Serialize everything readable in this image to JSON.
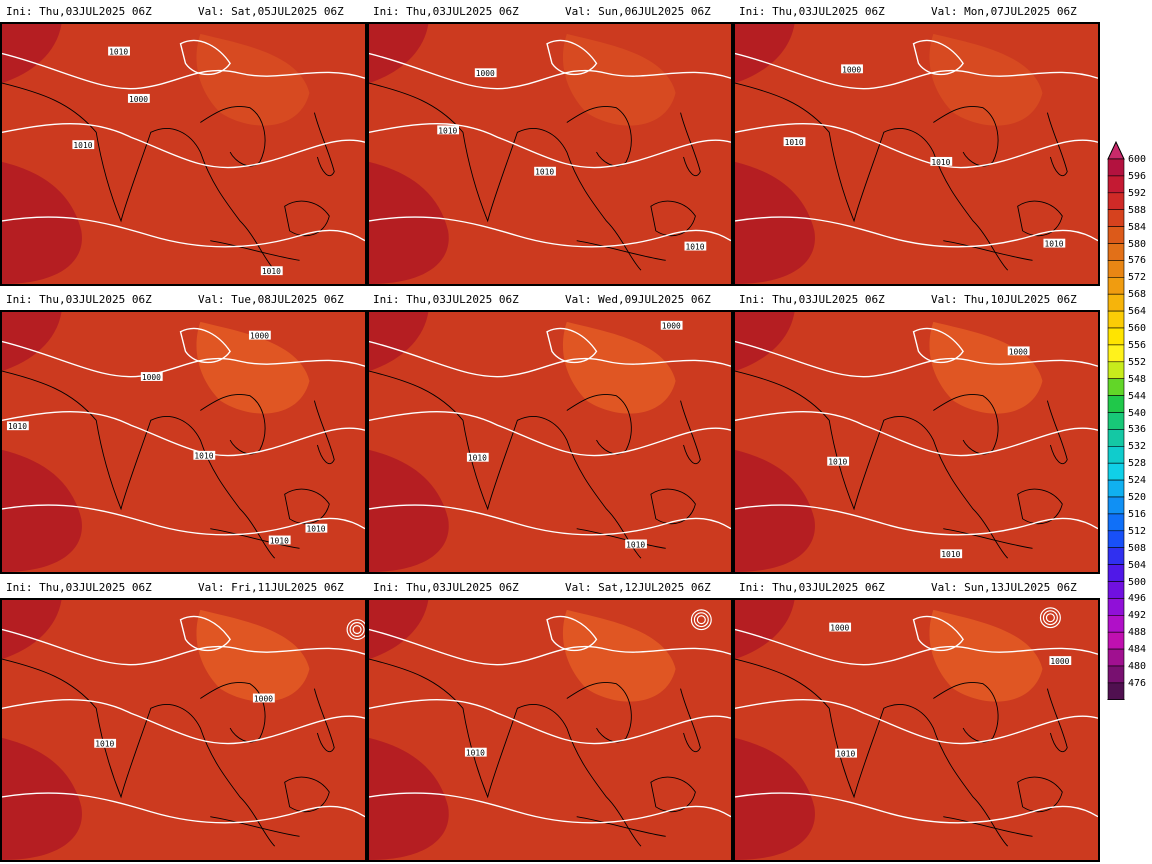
{
  "panels": [
    {
      "ini": "Ini: Thu,03JUL2025 06Z",
      "val": "Val: Sat,05JUL2025 06Z",
      "labels": [
        "1010",
        "1000",
        "1010",
        "1010"
      ]
    },
    {
      "ini": "Ini: Thu,03JUL2025 06Z",
      "val": "Val: Sun,06JUL2025 06Z",
      "labels": [
        "1000",
        "1010",
        "1010",
        "1010"
      ]
    },
    {
      "ini": "Ini: Thu,03JUL2025 06Z",
      "val": "Val: Mon,07JUL2025 06Z",
      "labels": [
        "1000",
        "1010",
        "1010",
        "1010"
      ]
    },
    {
      "ini": "Ini: Thu,03JUL2025 06Z",
      "val": "Val: Tue,08JUL2025 06Z",
      "labels": [
        "1000",
        "1000",
        "1010",
        "1010",
        "1010",
        "1010"
      ]
    },
    {
      "ini": "Ini: Thu,03JUL2025 06Z",
      "val": "Val: Wed,09JUL2025 06Z",
      "labels": [
        "1000",
        "1010",
        "1010"
      ]
    },
    {
      "ini": "Ini: Thu,03JUL2025 06Z",
      "val": "Val: Thu,10JUL2025 06Z",
      "labels": [
        "1000",
        "1010",
        "1010"
      ]
    },
    {
      "ini": "Ini: Thu,03JUL2025 06Z",
      "val": "Val: Fri,11JUL2025 06Z",
      "labels": [
        "1000",
        "1010"
      ]
    },
    {
      "ini": "Ini: Thu,03JUL2025 06Z",
      "val": "Val: Sat,12JUL2025 06Z",
      "labels": [
        "1010"
      ]
    },
    {
      "ini": "Ini: Thu,03JUL2025 06Z",
      "val": "Val: Sun,13JUL2025 06Z",
      "labels": [
        "1000",
        "1000",
        "1010"
      ]
    }
  ],
  "colorbar": {
    "levels": [
      "600",
      "596",
      "592",
      "588",
      "584",
      "580",
      "576",
      "572",
      "568",
      "564",
      "560",
      "556",
      "552",
      "548",
      "544",
      "540",
      "536",
      "532",
      "528",
      "524",
      "520",
      "516",
      "512",
      "508",
      "504",
      "500",
      "496",
      "492",
      "488",
      "484",
      "480",
      "476"
    ],
    "colors": [
      "#b3123f",
      "#c41a33",
      "#cf2a27",
      "#d6421e",
      "#dc5a1a",
      "#e27018",
      "#e98614",
      "#f09c10",
      "#f6b40b",
      "#fbcc06",
      "#ffe400",
      "#fff21c",
      "#c8ec1c",
      "#62d628",
      "#20c84a",
      "#18c878",
      "#14c8a4",
      "#10cccc",
      "#10d0e8",
      "#10b0f0",
      "#1090f4",
      "#1070f8",
      "#1850f8",
      "#3030f0",
      "#5018e8",
      "#7010e0",
      "#9010d8",
      "#b010c8",
      "#c010b0",
      "#a01090",
      "#781070",
      "#501050"
    ],
    "top_color": "#c82a6a",
    "bottom_color": "#3a0a40"
  },
  "colors": {
    "field": "#cc3a1f",
    "field_dark": "#b51e22",
    "field_light": "#e25a24",
    "contour": "#ffffff",
    "coast": "#000000"
  }
}
